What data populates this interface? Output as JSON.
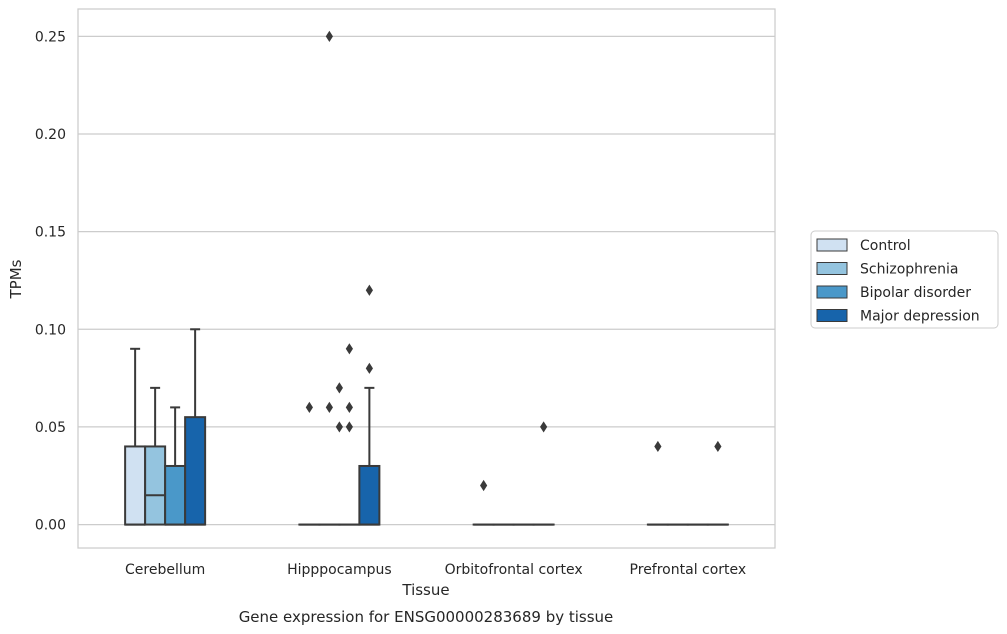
{
  "chart_data": {
    "type": "boxplot",
    "title": "Gene expression for ENSG00000283689 by tissue",
    "xlabel": "Tissue",
    "ylabel": "TPMs",
    "ylim": [
      -0.012,
      0.264
    ],
    "yticks": [
      0.0,
      0.05,
      0.1,
      0.15,
      0.2,
      0.25
    ],
    "ytick_labels": [
      "0.00",
      "0.05",
      "0.10",
      "0.15",
      "0.20",
      "0.25"
    ],
    "grid": true,
    "legend_placement": "right",
    "categories": [
      "Cerebellum",
      "Hipppocampus",
      "Orbitofrontal cortex",
      "Prefrontal cortex"
    ],
    "series": [
      {
        "name": "Control",
        "color": "#d0e1f2",
        "boxes": [
          {
            "q1": 0.0,
            "median": 0.0,
            "q3": 0.04,
            "whislo": 0.0,
            "whishi": 0.09,
            "fliers": []
          },
          {
            "q1": 0.0,
            "median": 0.0,
            "q3": 0.0,
            "whislo": 0.0,
            "whishi": 0.0,
            "fliers": [
              0.06
            ]
          },
          {
            "q1": 0.0,
            "median": 0.0,
            "q3": 0.0,
            "whislo": 0.0,
            "whishi": 0.0,
            "fliers": [
              0.02
            ]
          },
          {
            "q1": 0.0,
            "median": 0.0,
            "q3": 0.0,
            "whislo": 0.0,
            "whishi": 0.0,
            "fliers": [
              0.04
            ]
          }
        ]
      },
      {
        "name": "Schizophrenia",
        "color": "#94c4df",
        "boxes": [
          {
            "q1": 0.0,
            "median": 0.015,
            "q3": 0.04,
            "whislo": 0.0,
            "whishi": 0.07,
            "fliers": []
          },
          {
            "q1": 0.0,
            "median": 0.0,
            "q3": 0.0,
            "whislo": 0.0,
            "whishi": 0.0,
            "fliers": [
              0.25,
              0.06
            ]
          },
          {
            "q1": 0.0,
            "median": 0.0,
            "q3": 0.0,
            "whislo": 0.0,
            "whishi": 0.0,
            "fliers": []
          },
          {
            "q1": 0.0,
            "median": 0.0,
            "q3": 0.0,
            "whislo": 0.0,
            "whishi": 0.0,
            "fliers": []
          }
        ]
      },
      {
        "name": "Bipolar disorder",
        "color": "#4a98c9",
        "boxes": [
          {
            "q1": 0.0,
            "median": 0.0,
            "q3": 0.03,
            "whislo": 0.0,
            "whishi": 0.06,
            "fliers": []
          },
          {
            "q1": 0.0,
            "median": 0.0,
            "q3": 0.0,
            "whislo": 0.0,
            "whishi": 0.0,
            "fliers": [
              0.09,
              0.06,
              0.05
            ]
          },
          {
            "q1": 0.0,
            "median": 0.0,
            "q3": 0.0,
            "whislo": 0.0,
            "whishi": 0.0,
            "fliers": []
          },
          {
            "q1": 0.0,
            "median": 0.0,
            "q3": 0.0,
            "whislo": 0.0,
            "whishi": 0.0,
            "fliers": []
          }
        ]
      },
      {
        "name": "Major depression",
        "color": "#1764ab",
        "boxes": [
          {
            "q1": 0.0,
            "median": 0.0,
            "q3": 0.055,
            "whislo": 0.0,
            "whishi": 0.1,
            "fliers": []
          },
          {
            "q1": 0.0,
            "median": 0.0,
            "q3": 0.03,
            "whislo": 0.0,
            "whishi": 0.07,
            "fliers": [
              0.12,
              0.08
            ]
          },
          {
            "q1": 0.0,
            "median": 0.0,
            "q3": 0.0,
            "whislo": 0.0,
            "whishi": 0.0,
            "fliers": [
              0.05
            ]
          },
          {
            "q1": 0.0,
            "median": 0.0,
            "q3": 0.0,
            "whislo": 0.0,
            "whishi": 0.0,
            "fliers": [
              0.04
            ]
          }
        ]
      }
    ],
    "extra_fliers": [
      {
        "category": 1,
        "between": [
          1,
          2
        ],
        "values": [
          0.07,
          0.05
        ]
      }
    ]
  }
}
